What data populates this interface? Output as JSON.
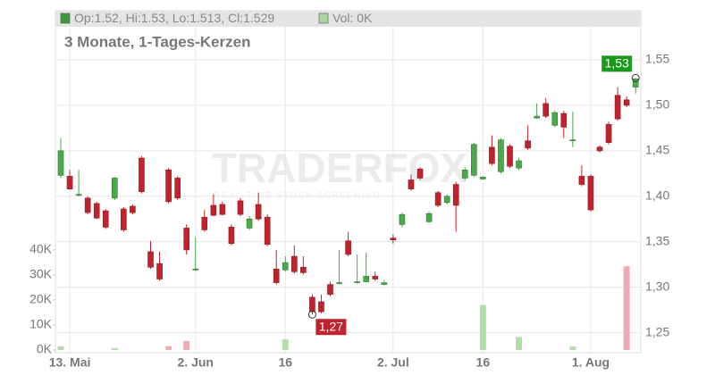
{
  "chart_data": {
    "type": "candlestick",
    "subtitle": "3 Monate, 1-Tages-Kerzen",
    "watermark": "TRADERFOX",
    "watermark_subtitle": "REAL-TIME STOCK SCREENING",
    "legend": [
      {
        "label": "Op:1.52, Hi:1.53, Lo:1.513, Cl:1.529",
        "color": "#3c9a3c"
      },
      {
        "label": "Vol: 0K",
        "color": "#a8d8a0"
      }
    ],
    "categories": [
      null,
      "13. Mai",
      null,
      null,
      null,
      null,
      null,
      null,
      null,
      null,
      null,
      null,
      null,
      null,
      null,
      "2. Jun",
      null,
      null,
      null,
      null,
      null,
      null,
      null,
      null,
      null,
      "16",
      null,
      null,
      null,
      null,
      null,
      null,
      null,
      null,
      null,
      null,
      null,
      "2. Jul",
      null,
      null,
      null,
      null,
      null,
      null,
      null,
      null,
      null,
      "16",
      null,
      null,
      null,
      null,
      null,
      null,
      null,
      null,
      null,
      null,
      null,
      "1. Aug",
      null,
      null,
      null,
      null,
      null
    ],
    "open": [
      1.423,
      1.422,
      1.401,
      1.398,
      1.392,
      1.384,
      1.398,
      1.386,
      1.389,
      1.442,
      1.339,
      1.326,
      1.429,
      1.42,
      1.365,
      1.319,
      1.377,
      1.39,
      1.391,
      1.366,
      1.395,
      1.365,
      1.391,
      1.377,
      1.32,
      1.319,
      1.334,
      1.322,
      1.289,
      1.284,
      1.303,
      1.304,
      1.351,
      1.305,
      1.306,
      1.312,
      1.303,
      1.354,
      1.369,
      1.418,
      1.43,
      1.372,
      1.404,
      1.393,
      1.413,
      1.42,
      1.423,
      1.419,
      1.454,
      1.427,
      1.455,
      1.431,
      1.461,
      1.486,
      1.502,
      1.478,
      1.491,
      1.461,
      1.422,
      1.422,
      1.454,
      1.479,
      1.511,
      1.506,
      1.52
    ],
    "high": [
      1.464,
      1.429,
      1.429,
      1.4,
      1.394,
      1.386,
      1.421,
      1.388,
      1.391,
      1.444,
      1.351,
      1.339,
      1.431,
      1.422,
      1.369,
      1.355,
      1.385,
      1.402,
      1.394,
      1.369,
      1.398,
      1.378,
      1.404,
      1.38,
      1.341,
      1.334,
      1.346,
      1.334,
      1.292,
      1.292,
      1.306,
      1.341,
      1.361,
      1.336,
      1.338,
      1.317,
      1.308,
      1.358,
      1.382,
      1.424,
      1.432,
      1.383,
      1.406,
      1.402,
      1.416,
      1.432,
      1.459,
      1.422,
      1.467,
      1.464,
      1.457,
      1.442,
      1.478,
      1.502,
      1.508,
      1.494,
      1.494,
      1.493,
      1.434,
      1.424,
      1.456,
      1.482,
      1.52,
      1.51,
      1.53
    ],
    "low": [
      1.42,
      1.407,
      1.4,
      1.38,
      1.375,
      1.364,
      1.396,
      1.361,
      1.38,
      1.403,
      1.32,
      1.307,
      1.392,
      1.396,
      1.336,
      1.318,
      1.361,
      1.378,
      1.379,
      1.346,
      1.378,
      1.363,
      1.373,
      1.345,
      1.303,
      1.317,
      1.315,
      1.314,
      1.27,
      1.271,
      1.29,
      1.303,
      1.334,
      1.304,
      1.305,
      1.307,
      1.302,
      1.348,
      1.366,
      1.406,
      1.418,
      1.37,
      1.388,
      1.391,
      1.361,
      1.418,
      1.421,
      1.418,
      1.434,
      1.425,
      1.431,
      1.429,
      1.451,
      1.485,
      1.486,
      1.476,
      1.464,
      1.454,
      1.411,
      1.383,
      1.448,
      1.457,
      1.483,
      1.498,
      1.513
    ],
    "close": [
      1.45,
      1.408,
      1.402,
      1.382,
      1.376,
      1.366,
      1.42,
      1.363,
      1.382,
      1.405,
      1.322,
      1.309,
      1.394,
      1.398,
      1.341,
      1.32,
      1.363,
      1.379,
      1.38,
      1.348,
      1.38,
      1.375,
      1.375,
      1.347,
      1.305,
      1.327,
      1.317,
      1.316,
      1.273,
      1.273,
      1.292,
      1.305,
      1.336,
      1.306,
      1.312,
      1.309,
      1.305,
      1.352,
      1.38,
      1.408,
      1.42,
      1.381,
      1.39,
      1.4,
      1.39,
      1.429,
      1.457,
      1.421,
      1.436,
      1.462,
      1.433,
      1.439,
      1.453,
      1.488,
      1.488,
      1.492,
      1.476,
      1.462,
      1.413,
      1.385,
      1.45,
      1.459,
      1.485,
      1.5,
      1.529
    ],
    "volume": [
      1500,
      0,
      0,
      0,
      0,
      0,
      800,
      0,
      0,
      0,
      0,
      0,
      1500,
      0,
      3600,
      0,
      0,
      0,
      0,
      0,
      0,
      0,
      0,
      0,
      0,
      4200,
      0,
      0,
      0,
      0,
      0,
      0,
      0,
      0,
      0,
      0,
      0,
      0,
      0,
      0,
      0,
      0,
      0,
      0,
      0,
      0,
      0,
      18000,
      0,
      0,
      0,
      5200,
      0,
      0,
      0,
      0,
      0,
      1500,
      0,
      0,
      0,
      0,
      0,
      33500,
      0
    ],
    "up_color": "#4aaa4a",
    "down_color": "#c0232b",
    "volume_up_color": "#b4dcac",
    "volume_down_color": "#f0aab2",
    "ylim": [
      1.228,
      1.604
    ],
    "yticks": [
      {
        "value": 1.25,
        "label": "1,25"
      },
      {
        "value": 1.3,
        "label": "1,30"
      },
      {
        "value": 1.35,
        "label": "1,35"
      },
      {
        "value": 1.4,
        "label": "1,40"
      },
      {
        "value": 1.45,
        "label": "1,45"
      },
      {
        "value": 1.5,
        "label": "1,50"
      },
      {
        "value": 1.55,
        "label": "1,55"
      }
    ],
    "y2lim": [
      0,
      40000
    ],
    "y2ticks": [
      {
        "value": 0,
        "label": "0K"
      },
      {
        "value": 10000,
        "label": "10K"
      },
      {
        "value": 20000,
        "label": "20K"
      },
      {
        "value": 30000,
        "label": "30K"
      },
      {
        "value": 40000,
        "label": "40K"
      }
    ],
    "annotations": [
      {
        "label": "1,53",
        "value": 1.53,
        "color": "#1a9a1a"
      },
      {
        "label": "1,27",
        "value": 1.27,
        "color": "#c0232b"
      }
    ],
    "grid": true
  }
}
